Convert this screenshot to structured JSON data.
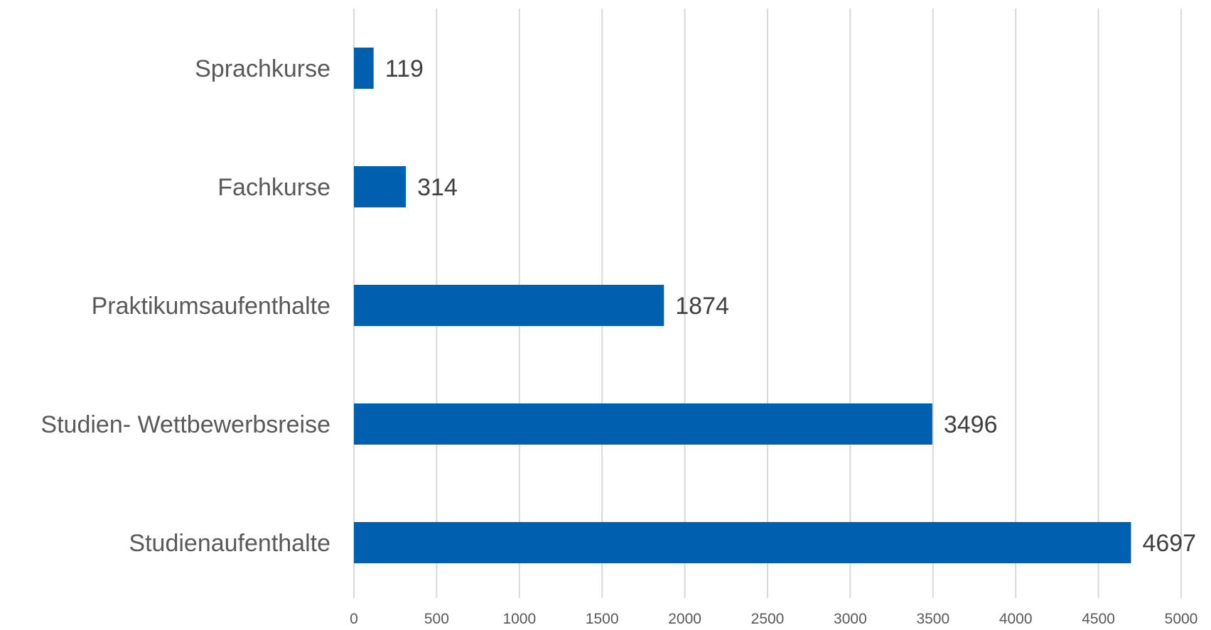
{
  "chart_data": {
    "type": "bar",
    "orientation": "horizontal",
    "categories": [
      "Sprachkurse",
      "Fachkurse",
      "Praktikumsaufenthalte",
      "Studien- Wettbewerbsreise",
      "Studienaufenthalte"
    ],
    "values": [
      119,
      314,
      1874,
      3496,
      4697
    ],
    "data_labels": [
      "119",
      "314",
      "1874",
      "3496",
      "4697"
    ],
    "title": "",
    "xlabel": "",
    "ylabel": "",
    "xlim": [
      0,
      5000
    ],
    "x_ticks": [
      0,
      500,
      1000,
      1500,
      2000,
      2500,
      3000,
      3500,
      4000,
      4500,
      5000
    ],
    "x_tick_labels": [
      "0",
      "500",
      "1000",
      "1500",
      "2000",
      "2500",
      "3000",
      "3500",
      "4000",
      "4500",
      "5000"
    ],
    "grid": "vertical",
    "legend": "none",
    "colors": {
      "bar": "#0060b0",
      "grid": "#d9d9d9",
      "category_text": "#595959",
      "value_text": "#404040"
    }
  }
}
